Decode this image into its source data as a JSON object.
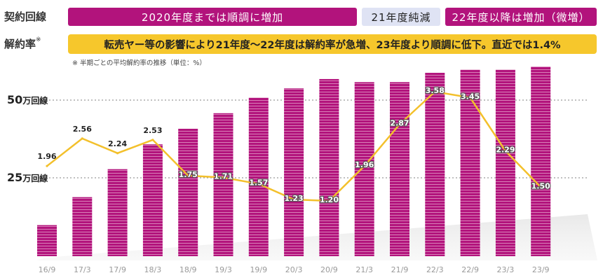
{
  "header": {
    "contract_label": "契約回線",
    "cancel_label": "解約率",
    "cancel_label_mark": "※",
    "contract_segments": [
      {
        "text": "2020年度までは順調に増加",
        "style": "magenta"
      },
      {
        "text": "21年度純減",
        "style": "light"
      },
      {
        "text": "22年度以降は増加（微増）",
        "style": "magenta"
      }
    ],
    "cancel_text": "転売ヤー等の影響により21年度～22年度は解約率が急増、23年度より順調に低下。直近では1.4%",
    "note": "※ 半期ごとの平均解約率の推移（単位：%）"
  },
  "colors": {
    "bar": "#b2137c",
    "line": "#f3c02b",
    "label_outline": "#555555",
    "magenta_pill": "#b2137c",
    "light_pill": "#dfe3f4",
    "yellow_pill": "#f6c72c"
  },
  "chart_data": {
    "type": "bar+line",
    "title": "",
    "categories": [
      "16/9",
      "17/3",
      "17/9",
      "18/3",
      "18/9",
      "19/3",
      "19/9",
      "20/3",
      "20/9",
      "21/3",
      "21/9",
      "22/3",
      "22/9",
      "23/3",
      "23/9"
    ],
    "series": [
      {
        "name": "契約回線 (万回線)",
        "type": "bar",
        "values": [
          10,
          19,
          28,
          36,
          41,
          46,
          51,
          54,
          57,
          56,
          56,
          59,
          60,
          60,
          61
        ]
      },
      {
        "name": "解約率 (%)",
        "type": "line",
        "values": [
          1.96,
          2.56,
          2.24,
          2.53,
          1.75,
          1.71,
          1.57,
          1.23,
          1.2,
          1.96,
          2.87,
          3.58,
          3.45,
          2.29,
          1.5
        ],
        "labels": [
          "1.96",
          "2.56",
          "2.24",
          "2.53",
          "1.75",
          "1.71",
          "1.57",
          "1.23",
          "1.20",
          "1.96",
          "2.87",
          "3.58",
          "3.45",
          "2.29",
          "1.50"
        ]
      }
    ],
    "y_axis": {
      "ticks": [
        {
          "value": 50,
          "num": "50",
          "unit": "万回線"
        },
        {
          "value": 25,
          "num": "25",
          "unit": "万回線"
        }
      ],
      "ylim": [
        0,
        63
      ]
    },
    "line_axis": {
      "ylim": [
        0.5,
        4.3
      ]
    },
    "grid": "dotted at 50 and 25"
  }
}
